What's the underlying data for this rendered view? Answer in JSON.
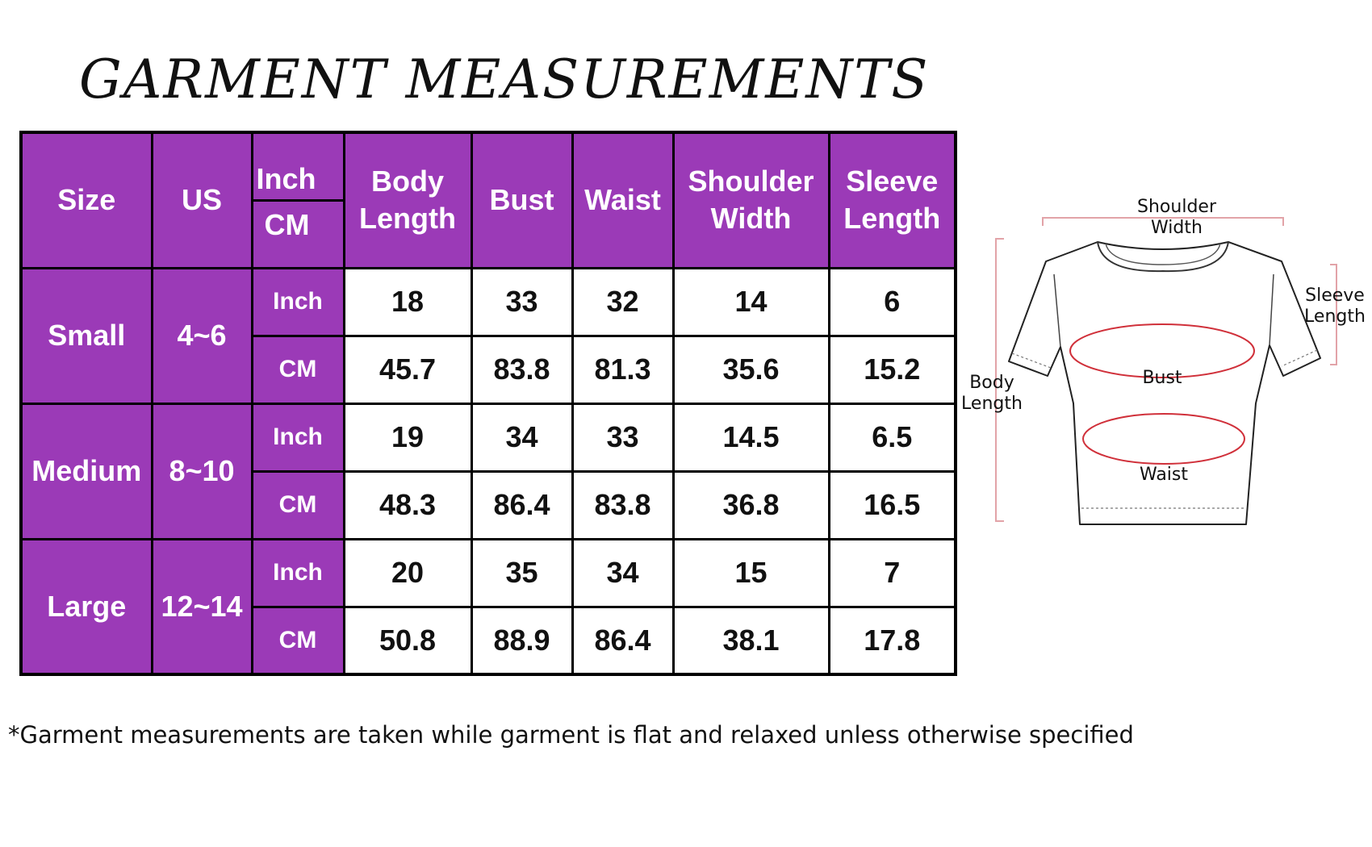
{
  "title": "GARMENT MEASUREMENTS",
  "table": {
    "headers": {
      "size": "Size",
      "us": "US",
      "unit_top": "Inch",
      "unit_bottom": "CM",
      "body_length": [
        "Body",
        "Length"
      ],
      "bust": "Bust",
      "waist": "Waist",
      "shoulder_width": [
        "Shoulder",
        "Width"
      ],
      "sleeve_length": [
        "Sleeve",
        "Length"
      ]
    },
    "rows": [
      {
        "size": "Small",
        "us": "4~6",
        "inch": {
          "unit": "Inch",
          "values": [
            "18",
            "33",
            "32",
            "14",
            "6"
          ]
        },
        "cm": {
          "unit": "CM",
          "values": [
            "45.7",
            "83.8",
            "81.3",
            "35.6",
            "15.2"
          ]
        }
      },
      {
        "size": "Medium",
        "us": "8~10",
        "inch": {
          "unit": "Inch",
          "values": [
            "19",
            "34",
            "33",
            "14.5",
            "6.5"
          ]
        },
        "cm": {
          "unit": "CM",
          "values": [
            "48.3",
            "86.4",
            "83.8",
            "36.8",
            "16.5"
          ]
        }
      },
      {
        "size": "Large",
        "us": "12~14",
        "inch": {
          "unit": "Inch",
          "values": [
            "20",
            "35",
            "34",
            "15",
            "7"
          ]
        },
        "cm": {
          "unit": "CM",
          "values": [
            "50.8",
            "88.9",
            "86.4",
            "38.1",
            "17.8"
          ]
        }
      }
    ]
  },
  "diagram": {
    "shoulder_width": [
      "Shoulder",
      "Width"
    ],
    "sleeve_length": [
      "Sleeve",
      "Length"
    ],
    "body_length": [
      "Body",
      "Length"
    ],
    "bust": "Bust",
    "waist": "Waist"
  },
  "footnote": "*Garment measurements are taken while garment is flat and relaxed unless otherwise specified",
  "colors": {
    "header_purple": "#9b3ab7",
    "ellipse_red": "#d0303a",
    "guide_pink": "#e2a3a8"
  }
}
